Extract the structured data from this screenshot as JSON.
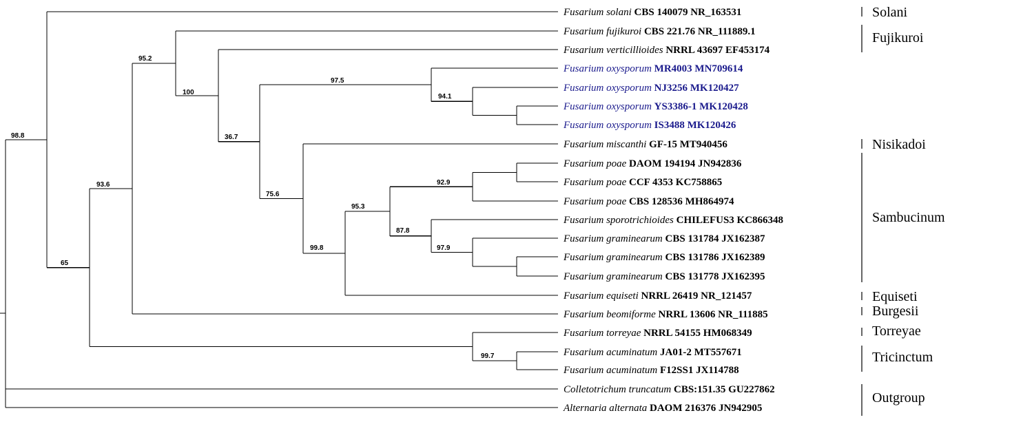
{
  "tree": {
    "tips": [
      {
        "species": "Fusarium solani",
        "strain": "CBS 140079 NR_163531",
        "highlight": false
      },
      {
        "species": "Fusarium fujikuroi",
        "strain": "CBS 221.76 NR_111889.1",
        "highlight": false
      },
      {
        "species": "Fusarium verticillioides",
        "strain": "NRRL 43697 EF453174",
        "highlight": false
      },
      {
        "species": "Fusarium oxysporum",
        "strain": "MR4003 MN709614",
        "highlight": true
      },
      {
        "species": "Fusarium oxysporum",
        "strain": "NJ3256 MK120427",
        "highlight": true
      },
      {
        "species": "Fusarium oxysporum",
        "strain": "YS3386-1 MK120428",
        "highlight": true
      },
      {
        "species": "Fusarium oxysporum",
        "strain": "IS3488 MK120426",
        "highlight": true
      },
      {
        "species": "Fusarium miscanthi",
        "strain": "GF-15 MT940456",
        "highlight": false
      },
      {
        "species": "Fusarium poae",
        "strain": "DAOM 194194 JN942836",
        "highlight": false
      },
      {
        "species": "Fusarium poae",
        "strain": "CCF 4353 KC758865",
        "highlight": false
      },
      {
        "species": "Fusarium poae",
        "strain": "CBS 128536 MH864974",
        "highlight": false
      },
      {
        "species": "Fusarium sporotrichioides",
        "strain": "CHILEFUS3 KC866348",
        "highlight": false
      },
      {
        "species": "Fusarium graminearum",
        "strain": "CBS 131784 JX162387",
        "highlight": false
      },
      {
        "species": "Fusarium graminearum",
        "strain": "CBS 131786 JX162389",
        "highlight": false
      },
      {
        "species": "Fusarium graminearum",
        "strain": "CBS 131778 JX162395",
        "highlight": false
      },
      {
        "species": "Fusarium equiseti",
        "strain": "NRRL 26419 NR_121457",
        "highlight": false
      },
      {
        "species": "Fusarium beomiforme",
        "strain": "NRRL 13606 NR_111885",
        "highlight": false
      },
      {
        "species": "Fusarium torreyae",
        "strain": "NRRL 54155 HM068349",
        "highlight": false
      },
      {
        "species": "Fusarium acuminatum",
        "strain": "JA01-2 MT557671",
        "highlight": false
      },
      {
        "species": "Fusarium acuminatum",
        "strain": "F12SS1 JX114788",
        "highlight": false
      },
      {
        "species": "Colletotrichum truncatum",
        "strain": "CBS:151.35 GU227862",
        "highlight": false
      },
      {
        "species": "Alternaria alternata",
        "strain": "DAOM 216376 JN942905",
        "highlight": false
      }
    ],
    "bootstrap": [
      "98.8",
      "65",
      "93.6",
      "95.2",
      "100",
      "36.7",
      "97.5",
      "94.1",
      "75.6",
      "99.8",
      "95.3",
      "92.9",
      "87.8",
      "97.9",
      "99.7"
    ],
    "groups": [
      "Solani",
      "Fujikuroi",
      "Nisikadoi",
      "Sambucinum",
      "Equiseti",
      "Burgesii",
      "Torreyae",
      "Tricinctum",
      "Outgroup"
    ],
    "highlight_color": "#1a1a8c"
  }
}
